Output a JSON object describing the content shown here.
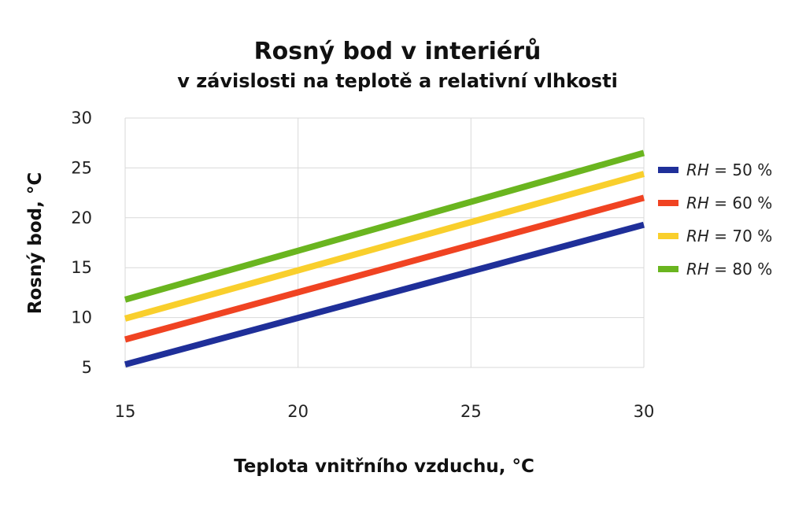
{
  "chart_data": {
    "type": "line",
    "title": "Rosný bod v interiérů",
    "subtitle": "v závislosti na teplotě a relativní vlhkosti",
    "xlabel": "Teplota vnitřního vzduchu, °C",
    "ylabel": "Rosný bod, °C",
    "xlim": [
      15,
      30
    ],
    "ylim": [
      5,
      30
    ],
    "xticks": [
      "15",
      "20",
      "25",
      "30"
    ],
    "yticks": [
      "5",
      "10",
      "15",
      "20",
      "25",
      "30"
    ],
    "grid": true,
    "legend": "right",
    "x": [
      15,
      30
    ],
    "series": [
      {
        "name": "RH = 50 %",
        "rh_label": "RH",
        "rest_label": " = 50 %",
        "color": "#1f2f99",
        "values": [
          5.3,
          19.3
        ]
      },
      {
        "name": "RH = 60 %",
        "rh_label": "RH",
        "rest_label": " = 60 %",
        "color": "#f04322",
        "values": [
          7.8,
          22.0
        ]
      },
      {
        "name": "RH = 70 %",
        "rh_label": "RH",
        "rest_label": " = 70 %",
        "color": "#f9cf2c",
        "values": [
          9.9,
          24.4
        ]
      },
      {
        "name": "RH = 80 %",
        "rh_label": "RH",
        "rest_label": " = 80 %",
        "color": "#6ab51f",
        "values": [
          11.8,
          26.5
        ]
      }
    ]
  }
}
